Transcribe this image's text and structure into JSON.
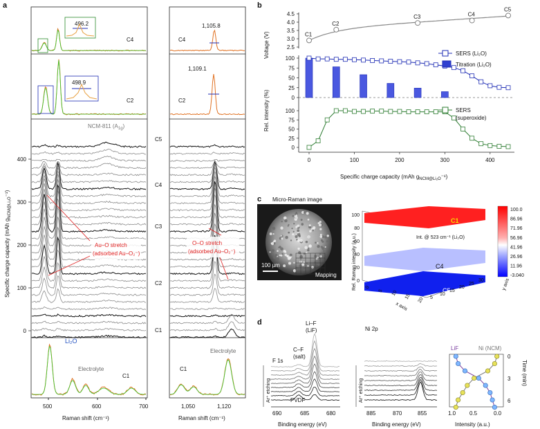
{
  "panel_letters": {
    "a": "a",
    "b": "b",
    "c": "c",
    "d": "d"
  },
  "colors": {
    "sers_blue": "#1f2db4",
    "sers_green": "#2e7d32",
    "voltage_gray": "#888888",
    "fit_green": "#33cc33",
    "fit_orange": "#e8a040",
    "annot_red": "#e02020",
    "li2o_blue": "#1f4fc0"
  },
  "panel_a": {
    "ylabel": "Specific charge capacity (mAh g",
    "ylabel_sub": "NCM@Li₂O",
    "ylabel_end": "⁻¹)",
    "left_xlabel": "Raman shift (cm⁻¹)",
    "right_xlabel": "Raman shift (cm⁻¹)",
    "left_xticks": [
      "500",
      "600",
      "700"
    ],
    "right_xticks": [
      "1,050",
      "1,120"
    ],
    "yticks": [
      "0",
      "100",
      "200",
      "300",
      "400"
    ],
    "state_labels": [
      "C5",
      "C4",
      "C3",
      "C2",
      "C1"
    ],
    "c4_label": "C4",
    "c2_label": "C2",
    "c1_label": "C1",
    "right_c4_label": "C4",
    "right_c2_label": "C2",
    "right_c1_label": "C1",
    "inset_c4_value": "496.2",
    "inset_c2_value": "498.9",
    "right_c4_peak": "1,105.8",
    "right_c2_peak": "1,109.1",
    "ncm_label": "NCM-811 (A",
    "ncm_sub": "1g",
    "ncm_end": ")",
    "auo_line1": "Au–O stretch",
    "auo_line2": "(adsorbed Au–O₂⁻)",
    "oo_line1": "O–O stretch",
    "oo_line2": "(adsorbed Au–O₂⁻)",
    "li2o_label": "Li₂O",
    "electrolyte_left": "Electrolyte",
    "electrolyte_right": "Electrolyte"
  },
  "panel_b": {
    "voltage_label": "Voltage (V)",
    "rel_label": "Rel. intensity (%)",
    "xlabel": "Specific charge capacity (mAh g",
    "xlabel_sub": "NCM@Li₂O",
    "xlabel_end": "⁻¹)",
    "voltage_yticks": [
      "2.5",
      "3.0",
      "3.5",
      "4.0",
      "4.5"
    ],
    "rel_yticks_top": [
      "0",
      "25",
      "50",
      "75",
      "100"
    ],
    "rel_yticks_bottom": [
      "0",
      "25",
      "50",
      "75",
      "100"
    ],
    "xticks": [
      "0",
      "100",
      "200",
      "300",
      "400"
    ],
    "point_labels": [
      "C1",
      "C2",
      "C3",
      "C4",
      "C5"
    ],
    "legend_sers_li2o": "SERS (Li₂O)",
    "legend_titration": "Titration (Li₂O)",
    "legend_sers_superoxide_1": "SERS",
    "legend_sers_superoxide_2": "(superoxide)"
  },
  "panel_c": {
    "micro_title": "Micro-Raman image",
    "scalebar": "100 µm",
    "mapping": "Mapping",
    "colorbar_ticks": [
      "100.0",
      "86.96",
      "71.96",
      "56.96",
      "41.96",
      "26.96",
      "11.96",
      "-3.040"
    ],
    "zlabel": "Rel. Raman intensity (a.u.)",
    "xlabel": "x axis",
    "ylabel": "y axis",
    "zticks": [
      "0",
      "20",
      "40",
      "60",
      "80",
      "100"
    ],
    "xticks": [
      "0",
      "5",
      "10",
      "15",
      "20"
    ],
    "yticks": [
      "5",
      "10",
      "15",
      "20",
      "25",
      "30"
    ],
    "surface_c1": "C1",
    "surface_c4": "C4",
    "surface_c5": "C5",
    "annotation": "Int. @ 523 cm⁻¹ (Li₂O)"
  },
  "panel_d": {
    "f1s": "F 1s",
    "cf_line1": "C–F",
    "cf_line2": "(salt)",
    "lif_line1": "Li–F",
    "lif_line2": "(LiF)",
    "pvdf": "PVDF",
    "etching_left": "Ar⁺ etching",
    "etching_right": "Ar⁺ etching",
    "f_xticks": [
      "690",
      "685",
      "680"
    ],
    "ni_xticks": [
      "885",
      "870",
      "855"
    ],
    "ni2p": "Ni 2p",
    "binding_left": "Binding energy (eV)",
    "binding_right": "Binding energy (eV)",
    "lif_legend": "LiF",
    "ni_legend": "Ni (NCM)",
    "intensity_label": "Intensity (a.u.)",
    "intensity_xticks": [
      "1.0",
      "0.5",
      "0.0"
    ],
    "time_label": "Time (min)",
    "time_yticks": [
      "0",
      "3",
      "6"
    ]
  },
  "chart_data": [
    {
      "type": "line",
      "panel": "b-top",
      "ylabel": "Voltage (V)",
      "ylim": [
        2.5,
        4.5
      ],
      "series": [
        {
          "values": [
            [
              0,
              2.9
            ],
            [
              60,
              3.55
            ],
            [
              240,
              3.95
            ],
            [
              360,
              4.1
            ],
            [
              440,
              4.4
            ]
          ]
        }
      ],
      "point_labels": [
        "C1",
        "C2",
        "C3",
        "C4",
        "C5"
      ]
    },
    {
      "type": "line",
      "panel": "b-middle",
      "ylabel": "Rel. intensity (%)",
      "xlabel": "Specific charge capacity (mAh g NCM@Li₂O ⁻¹)",
      "ylim": [
        0,
        100
      ],
      "series": [
        {
          "name": "SERS (Li₂O)",
          "values": [
            [
              0,
              100
            ],
            [
              20,
              98
            ],
            [
              40,
              98
            ],
            [
              60,
              97
            ],
            [
              80,
              97
            ],
            [
              100,
              96
            ],
            [
              120,
              95
            ],
            [
              140,
              94
            ],
            [
              160,
              93
            ],
            [
              180,
              92
            ],
            [
              200,
              91
            ],
            [
              220,
              90
            ],
            [
              240,
              88
            ],
            [
              260,
              86
            ],
            [
              280,
              83
            ],
            [
              300,
              80
            ],
            [
              320,
              76
            ],
            [
              340,
              68
            ],
            [
              360,
              55
            ],
            [
              380,
              40
            ],
            [
              400,
              30
            ],
            [
              420,
              26
            ],
            [
              440,
              25
            ]
          ]
        },
        {
          "name": "Titration (Li₂O)",
          "bars": [
            [
              0,
              100
            ],
            [
              60,
              78
            ],
            [
              120,
              58
            ],
            [
              180,
              36
            ],
            [
              240,
              24
            ],
            [
              300,
              15
            ],
            [
              440,
              0
            ]
          ]
        }
      ]
    },
    {
      "type": "line",
      "panel": "b-bottom",
      "ylim": [
        0,
        100
      ],
      "series": [
        {
          "name": "SERS (superoxide)",
          "values": [
            [
              0,
              0
            ],
            [
              20,
              18
            ],
            [
              40,
              75
            ],
            [
              60,
              100
            ],
            [
              80,
              100
            ],
            [
              100,
              98
            ],
            [
              120,
              98
            ],
            [
              140,
              99
            ],
            [
              160,
              99
            ],
            [
              180,
              98
            ],
            [
              200,
              98
            ],
            [
              220,
              97
            ],
            [
              240,
              97
            ],
            [
              260,
              97
            ],
            [
              280,
              97
            ],
            [
              300,
              97
            ],
            [
              320,
              80
            ],
            [
              340,
              50
            ],
            [
              360,
              25
            ],
            [
              380,
              10
            ],
            [
              400,
              5
            ],
            [
              420,
              3
            ],
            [
              440,
              2
            ]
          ]
        }
      ]
    },
    {
      "type": "scatter",
      "panel": "d-right",
      "xlabel": "Intensity (a.u.)",
      "ylabel": "Time (min)",
      "xlim": [
        1.0,
        0.0
      ],
      "ylim": [
        0,
        7
      ],
      "series": [
        {
          "name": "LiF",
          "values": [
            [
              0.95,
              0
            ],
            [
              0.9,
              1
            ],
            [
              0.75,
              2
            ],
            [
              0.45,
              3
            ],
            [
              0.3,
              4
            ],
            [
              0.2,
              5
            ],
            [
              0.15,
              6
            ],
            [
              0.1,
              7
            ]
          ]
        },
        {
          "name": "Ni (NCM)",
          "values": [
            [
              0.05,
              0
            ],
            [
              0.1,
              1
            ],
            [
              0.25,
              2
            ],
            [
              0.55,
              3
            ],
            [
              0.7,
              4
            ],
            [
              0.8,
              5
            ],
            [
              0.9,
              6
            ],
            [
              0.95,
              7
            ]
          ]
        }
      ]
    }
  ]
}
